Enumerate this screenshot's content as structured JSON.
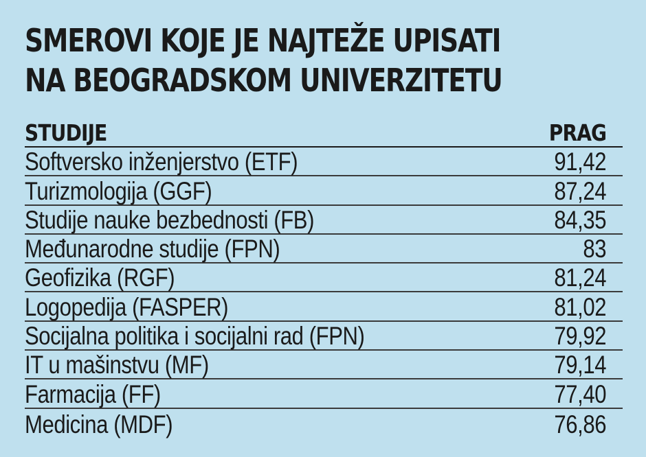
{
  "title": "SMEROVI KOJE JE NAJTEŽE UPISATI NA BEOGRADSKOM UNIVERZITETU",
  "chart_data": {
    "type": "table",
    "title": "SMEROVI KOJE JE NAJTEŽE UPISATI NA BEOGRADSKOM UNIVERZITETU",
    "columns": [
      "STUDIJE",
      "PRAG"
    ],
    "rows": [
      {
        "name": "Softversko inženjerstvo (ETF)",
        "value": "91,42"
      },
      {
        "name": "Turizmologija (GGF)",
        "value": "87,24"
      },
      {
        "name": "Studije nauke bezbednosti (FB)",
        "value": "84,35"
      },
      {
        "name": "Međunarodne studije (FPN)",
        "value": "83"
      },
      {
        "name": "Geofizika (RGF)",
        "value": "81,24"
      },
      {
        "name": "Logopedija (FASPER)",
        "value": "81,02"
      },
      {
        "name": "Socijalna politika i socijalni rad (FPN)",
        "value": "79,92"
      },
      {
        "name": "IT u mašinstvu (MF)",
        "value": "79,14"
      },
      {
        "name": "Farmacija (FF)",
        "value": "77,40"
      },
      {
        "name": "Medicina (MDF)",
        "value": "76,86"
      }
    ]
  },
  "colors": {
    "background": "#bfe0ee",
    "text": "#1a1a1a"
  }
}
